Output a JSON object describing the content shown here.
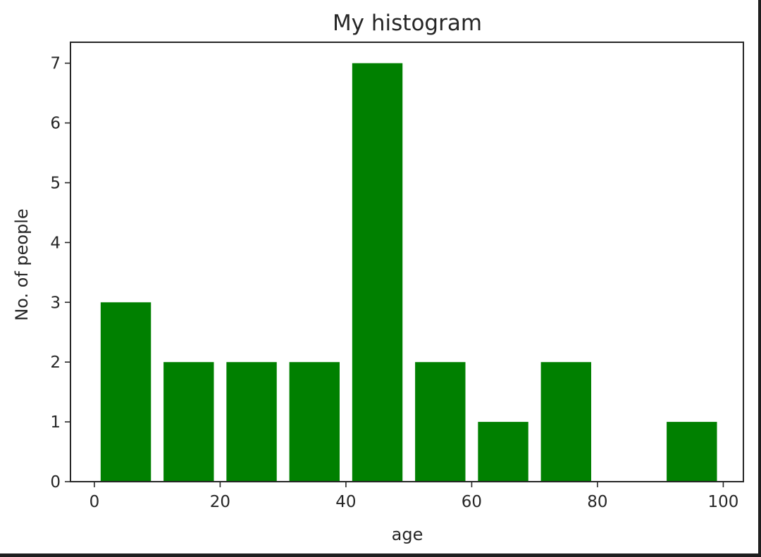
{
  "chart_data": {
    "type": "bar",
    "title": "My histogram",
    "xlabel": "age",
    "ylabel": "No. of people",
    "xlim": [
      -3.8,
      103.2
    ],
    "ylim": [
      0,
      7.35
    ],
    "xticks": [
      0,
      20,
      40,
      60,
      80,
      100
    ],
    "yticks": [
      0,
      1,
      2,
      3,
      4,
      5,
      6,
      7
    ],
    "bins": [
      {
        "start": 1,
        "end": 9,
        "value": 3
      },
      {
        "start": 11,
        "end": 19,
        "value": 2
      },
      {
        "start": 21,
        "end": 29,
        "value": 2
      },
      {
        "start": 31,
        "end": 39,
        "value": 2
      },
      {
        "start": 41,
        "end": 49,
        "value": 7
      },
      {
        "start": 51,
        "end": 59,
        "value": 2
      },
      {
        "start": 61,
        "end": 69,
        "value": 1
      },
      {
        "start": 71,
        "end": 79,
        "value": 2
      },
      {
        "start": 81,
        "end": 89,
        "value": 0
      },
      {
        "start": 91,
        "end": 99,
        "value": 1
      }
    ],
    "bar_color": "#008000",
    "grid": false,
    "legend": "none"
  }
}
